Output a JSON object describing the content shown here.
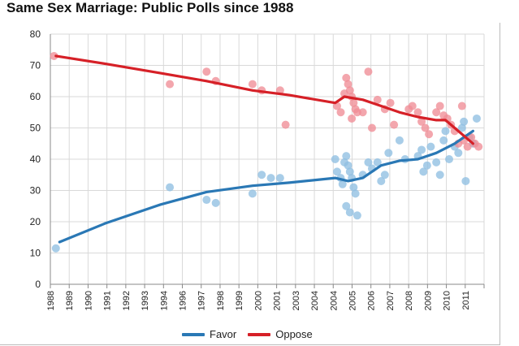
{
  "chart_data": {
    "type": "scatter",
    "title": "Same Sex Marriage: Public Polls since 1988",
    "xlabel": "",
    "ylabel": "",
    "ylim": [
      0,
      80
    ],
    "xlim": [
      1988,
      2011.6
    ],
    "yticks": [
      0,
      10,
      20,
      30,
      40,
      50,
      60,
      70,
      80
    ],
    "x_tick_labels": [
      "1988",
      "1989",
      "1990",
      "1991",
      "1992",
      "1993",
      "1994",
      "1996",
      "1997",
      "1998",
      "1999",
      "2000",
      "2001",
      "2003",
      "2004",
      "2004",
      "2005",
      "2006",
      "2007",
      "2008",
      "2009",
      "2010",
      "2011"
    ],
    "grid": true,
    "legend_position": "bottom",
    "series": [
      {
        "name": "Favor",
        "color": "#2a78b5",
        "point_color": "#8fbfe2",
        "trend": [
          [
            1988.5,
            13.5
          ],
          [
            1991,
            19.5
          ],
          [
            1994,
            25.5
          ],
          [
            1996.5,
            29.5
          ],
          [
            1999,
            31.5
          ],
          [
            2001,
            32.5
          ],
          [
            2003.5,
            34
          ],
          [
            2004.2,
            33
          ],
          [
            2005,
            34
          ],
          [
            2006,
            38
          ],
          [
            2007,
            39.5
          ],
          [
            2008,
            40
          ],
          [
            2009,
            42
          ],
          [
            2010,
            45
          ],
          [
            2011,
            49
          ]
        ],
        "points": [
          [
            1988.3,
            11.5
          ],
          [
            1994.5,
            31
          ],
          [
            1996.5,
            27
          ],
          [
            1997,
            26
          ],
          [
            1999,
            29
          ],
          [
            1999.5,
            35
          ],
          [
            2000,
            34
          ],
          [
            2000.5,
            34
          ],
          [
            2003.5,
            40
          ],
          [
            2003.6,
            36
          ],
          [
            2003.8,
            34
          ],
          [
            2003.9,
            32
          ],
          [
            2004,
            39
          ],
          [
            2004.1,
            41
          ],
          [
            2004.2,
            38
          ],
          [
            2004.3,
            36
          ],
          [
            2004.4,
            34
          ],
          [
            2004.5,
            31
          ],
          [
            2004.6,
            29
          ],
          [
            2004.1,
            25
          ],
          [
            2004.3,
            23
          ],
          [
            2004.7,
            22
          ],
          [
            2005,
            35
          ],
          [
            2005.3,
            39
          ],
          [
            2005.5,
            37
          ],
          [
            2005.8,
            39
          ],
          [
            2006,
            33
          ],
          [
            2006.2,
            35
          ],
          [
            2006.4,
            42
          ],
          [
            2007,
            46
          ],
          [
            2007.3,
            40
          ],
          [
            2008,
            41
          ],
          [
            2008.2,
            43
          ],
          [
            2008.3,
            36
          ],
          [
            2008.5,
            38
          ],
          [
            2008.7,
            44
          ],
          [
            2009,
            39
          ],
          [
            2009.2,
            35
          ],
          [
            2009.4,
            46
          ],
          [
            2009.5,
            49
          ],
          [
            2009.7,
            40
          ],
          [
            2010,
            44
          ],
          [
            2010.2,
            42
          ],
          [
            2010.4,
            50
          ],
          [
            2010.5,
            52
          ],
          [
            2010.6,
            33
          ],
          [
            2010.8,
            47
          ],
          [
            2011,
            45
          ],
          [
            2011.2,
            53
          ]
        ]
      },
      {
        "name": "Oppose",
        "color": "#d62027",
        "point_color": "#ef8d96",
        "trend": [
          [
            1988.3,
            73
          ],
          [
            1991,
            70.5
          ],
          [
            1994,
            67.5
          ],
          [
            1996.5,
            65
          ],
          [
            1999,
            62
          ],
          [
            2001,
            60.5
          ],
          [
            2003.5,
            58
          ],
          [
            2004,
            60
          ],
          [
            2004.5,
            59.5
          ],
          [
            2005,
            59
          ],
          [
            2006,
            57
          ],
          [
            2007,
            55
          ],
          [
            2008,
            53.5
          ],
          [
            2009,
            52.5
          ],
          [
            2009.5,
            52.5
          ],
          [
            2010,
            50
          ],
          [
            2011,
            45
          ]
        ],
        "points": [
          [
            1988.2,
            73
          ],
          [
            1994.5,
            64
          ],
          [
            1996.5,
            68
          ],
          [
            1997,
            65
          ],
          [
            1999,
            64
          ],
          [
            1999.5,
            62
          ],
          [
            2000.5,
            62
          ],
          [
            2000.8,
            51
          ],
          [
            2003.6,
            57
          ],
          [
            2003.8,
            55
          ],
          [
            2004,
            61
          ],
          [
            2004.1,
            66
          ],
          [
            2004.2,
            64
          ],
          [
            2004.3,
            62
          ],
          [
            2004.4,
            60
          ],
          [
            2004.5,
            58
          ],
          [
            2004.6,
            56
          ],
          [
            2004.7,
            55
          ],
          [
            2004.4,
            53
          ],
          [
            2005,
            55
          ],
          [
            2005.3,
            68
          ],
          [
            2005.5,
            50
          ],
          [
            2005.8,
            59
          ],
          [
            2006.2,
            56
          ],
          [
            2006.5,
            58
          ],
          [
            2006.7,
            51
          ],
          [
            2007.5,
            56
          ],
          [
            2007.7,
            57
          ],
          [
            2008,
            55
          ],
          [
            2008.2,
            52
          ],
          [
            2008.4,
            50
          ],
          [
            2008.6,
            48
          ],
          [
            2009,
            55
          ],
          [
            2009.2,
            57
          ],
          [
            2009.4,
            54
          ],
          [
            2009.6,
            53
          ],
          [
            2009.8,
            51
          ],
          [
            2010,
            49
          ],
          [
            2010.2,
            45
          ],
          [
            2010.4,
            57
          ],
          [
            2010.5,
            46
          ],
          [
            2010.7,
            44
          ],
          [
            2010.9,
            47
          ],
          [
            2011.1,
            45
          ],
          [
            2011.3,
            44
          ]
        ]
      }
    ]
  }
}
